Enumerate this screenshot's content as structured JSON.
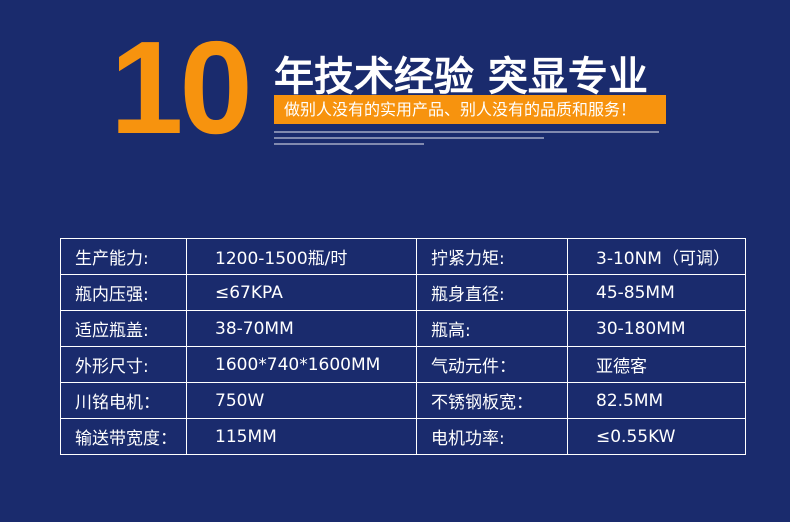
{
  "header": {
    "number": "10",
    "title": "年技术经验 突显专业",
    "slogan": "做别人没有的实用产品、别人没有的品质和服务！"
  },
  "table": {
    "rows": [
      [
        "生产能力:",
        "1200-1500瓶/时",
        "拧紧力矩:",
        "3-10NM（可调）"
      ],
      [
        "瓶内压强:",
        "≤67KPA",
        "瓶身直径:",
        "45-85MM"
      ],
      [
        "适应瓶盖:",
        "38-70MM",
        "瓶高:",
        "30-180MM"
      ],
      [
        "外形尺寸:",
        "1600*740*1600MM",
        "气动元件：",
        "亚德客"
      ],
      [
        "川铭电机：",
        "750W",
        "不锈钢板宽：",
        "82.5MM"
      ],
      [
        "输送带宽度：",
        "115MM",
        "电机功率:",
        "≤0.55KW"
      ]
    ]
  }
}
